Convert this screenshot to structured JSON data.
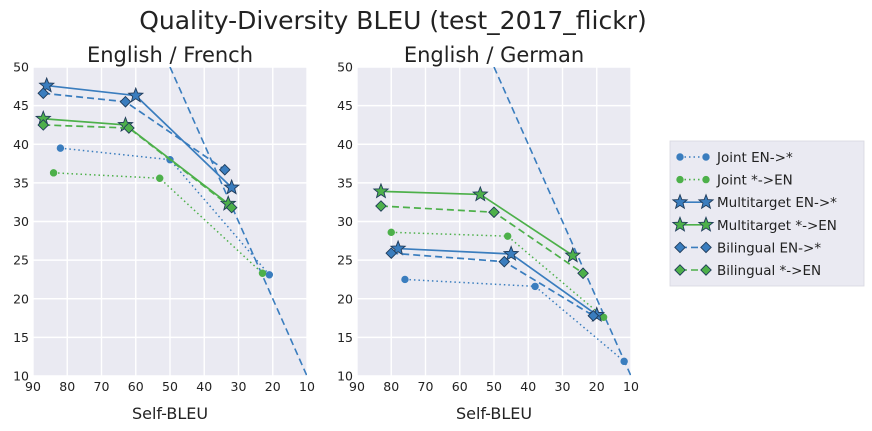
{
  "chart_data": {
    "type": "line",
    "title": "Quality-Diversity BLEU (test_2017_flickr)",
    "colors": {
      "blue": "#3A7DBE",
      "green": "#4DB04A",
      "grid": "#FFFFFF",
      "panel": "#EAEAF2"
    },
    "legend": {
      "placement": "right",
      "entries": [
        {
          "label": "Joint EN->*",
          "style": "dotted",
          "marker": "circle",
          "color": "#3A7DBE"
        },
        {
          "label": "Joint *->EN",
          "style": "dotted",
          "marker": "circle",
          "color": "#4DB04A"
        },
        {
          "label": "Multitarget EN->*",
          "style": "solid",
          "marker": "star",
          "color": "#3A7DBE"
        },
        {
          "label": "Multitarget *->EN",
          "style": "solid",
          "marker": "star",
          "color": "#4DB04A"
        },
        {
          "label": "Bilingual EN->*",
          "style": "dashed",
          "marker": "diamond",
          "color": "#3A7DBE"
        },
        {
          "label": "Bilingual *->EN",
          "style": "dashed",
          "marker": "diamond",
          "color": "#4DB04A"
        }
      ]
    },
    "panels": [
      {
        "title": "English / French",
        "xlabel": "Self-BLEU",
        "ylabel": "",
        "xlim": [
          90,
          10
        ],
        "ylim": [
          10,
          50
        ],
        "xticks": [
          90,
          80,
          70,
          60,
          50,
          40,
          30,
          20,
          10
        ],
        "yticks": [
          10,
          15,
          20,
          25,
          30,
          35,
          40,
          45,
          50
        ],
        "grid": true,
        "reference_line": {
          "style": "dashed",
          "color": "#3A7DBE",
          "points": [
            [
              50,
              50
            ],
            [
              10,
              10
            ]
          ]
        },
        "series": [
          {
            "name": "Joint EN->*",
            "points": [
              [
                82,
                39.5
              ],
              [
                50,
                38
              ],
              [
                21,
                23.1
              ]
            ]
          },
          {
            "name": "Joint *->EN",
            "points": [
              [
                84,
                36.3
              ],
              [
                53,
                35.6
              ],
              [
                23,
                23.3
              ]
            ]
          },
          {
            "name": "Multitarget EN->*",
            "points": [
              [
                86,
                47.6
              ],
              [
                60,
                46.3
              ],
              [
                32,
                34.4
              ]
            ]
          },
          {
            "name": "Multitarget *->EN",
            "points": [
              [
                87,
                43.3
              ],
              [
                63,
                42.5
              ],
              [
                33,
                32.3
              ]
            ]
          },
          {
            "name": "Bilingual EN->*",
            "points": [
              [
                87,
                46.6
              ],
              [
                63,
                45.5
              ],
              [
                34,
                36.7
              ]
            ]
          },
          {
            "name": "Bilingual *->EN",
            "points": [
              [
                87,
                42.5
              ],
              [
                62,
                42.1
              ],
              [
                32,
                31.8
              ]
            ]
          }
        ]
      },
      {
        "title": "English / German",
        "xlabel": "Self-BLEU",
        "ylabel": "",
        "xlim": [
          90,
          10
        ],
        "ylim": [
          10,
          50
        ],
        "xticks": [
          90,
          80,
          70,
          60,
          50,
          40,
          30,
          20,
          10
        ],
        "yticks": [
          10,
          15,
          20,
          25,
          30,
          35,
          40,
          45,
          50
        ],
        "grid": true,
        "reference_line": {
          "style": "dashed",
          "color": "#3A7DBE",
          "points": [
            [
              50,
              50
            ],
            [
              10,
              10
            ]
          ]
        },
        "series": [
          {
            "name": "Joint EN->*",
            "points": [
              [
                76,
                22.5
              ],
              [
                38,
                21.6
              ],
              [
                12,
                11.9
              ]
            ]
          },
          {
            "name": "Joint *->EN",
            "points": [
              [
                80,
                28.6
              ],
              [
                46,
                28.1
              ],
              [
                18,
                17.6
              ]
            ]
          },
          {
            "name": "Multitarget EN->*",
            "points": [
              [
                78,
                26.5
              ],
              [
                45,
                25.8
              ],
              [
                20,
                17.9
              ]
            ]
          },
          {
            "name": "Multitarget *->EN",
            "points": [
              [
                83,
                33.9
              ],
              [
                54,
                33.5
              ],
              [
                27,
                25.6
              ]
            ]
          },
          {
            "name": "Bilingual EN->*",
            "points": [
              [
                80,
                25.9
              ],
              [
                47,
                24.8
              ],
              [
                21,
                17.8
              ]
            ]
          },
          {
            "name": "Bilingual *->EN",
            "points": [
              [
                83,
                32
              ],
              [
                50,
                31.2
              ],
              [
                24,
                23.3
              ]
            ]
          }
        ]
      }
    ]
  }
}
